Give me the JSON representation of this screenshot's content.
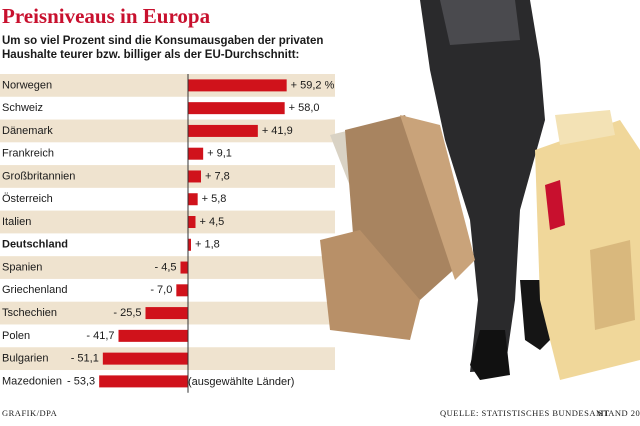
{
  "chart_data": {
    "type": "barh",
    "title": "Preisniveaus in Europa",
    "subtitle": [
      "Um so viel Prozent sind die Konsumausgaben der privaten",
      "Haushalte teurer bzw. billiger als der EU-Durchschnitt:"
    ],
    "categories": [
      "Norwegen",
      "Schweiz",
      "Dänemark",
      "Frankreich",
      "Großbritannien",
      "Österreich",
      "Italien",
      "Deutschland",
      "Spanien",
      "Griechenland",
      "Tschechien",
      "Polen",
      "Bulgarien",
      "Mazedonien"
    ],
    "values": [
      59.2,
      58.0,
      41.9,
      9.1,
      7.8,
      5.8,
      4.5,
      1.8,
      -4.5,
      -7.0,
      -25.5,
      -41.7,
      -51.1,
      -53.3
    ],
    "value_labels": [
      "+ 59,2 %",
      "+ 58,0",
      "+ 41,9",
      "+ 9,1",
      "+ 7,8",
      "+ 5,8",
      "+ 4,5",
      "+ 1,8",
      "- 4,5",
      "- 7,0",
      "- 25,5",
      "- 41,7",
      "- 51,1",
      "- 53,3"
    ],
    "color": "#d0121b",
    "highlight": "Deutschland",
    "highlight_color": "#c8102e",
    "xlim": [
      -60,
      60
    ],
    "annotation": "(ausgewählte Länder)",
    "credit": "Grafik/dpa",
    "source": "Quelle: Statistisches Bundesamt",
    "date": "Stand 20"
  }
}
